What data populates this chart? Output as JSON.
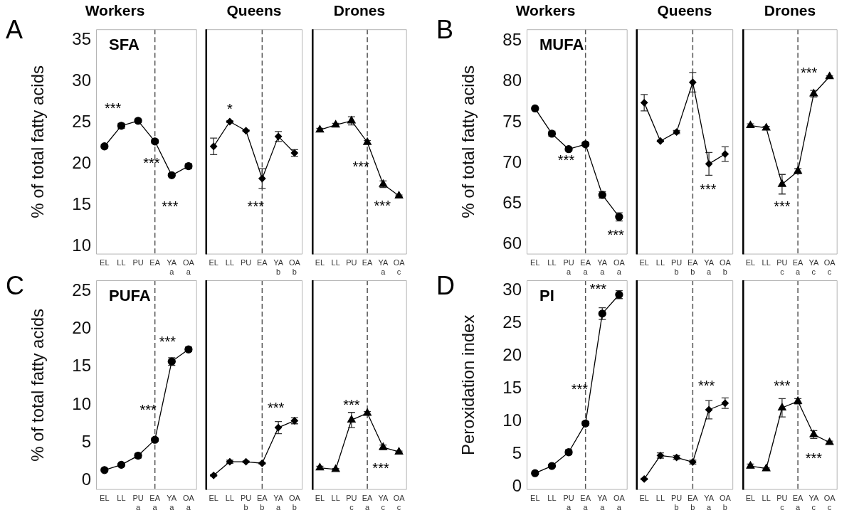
{
  "chart_data": [
    {
      "type": "line",
      "title": "Workers",
      "ylabel": "% of total fatty acids",
      "categories": [
        "EL",
        "LL",
        "PU",
        "EA",
        "YA\na",
        "OA\na"
      ],
      "series": [
        {
          "color": "#000000",
          "values": [
            22.1,
            24.6,
            25.2,
            22.7,
            18.6,
            19.7
          ],
          "errors": [
            0.2,
            0.3,
            0.2,
            0.2,
            0.2,
            0.3
          ]
        }
      ],
      "ylim": [
        9,
        36.3
      ],
      "yticks": [
        10,
        15,
        20,
        25,
        30,
        35
      ],
      "marker": "circle",
      "ref_lines": [
        {
          "axis": "x",
          "value": "EA"
        }
      ],
      "annotations": [
        "A",
        "SFA",
        "***",
        "***",
        "***"
      ]
    },
    {
      "type": "line",
      "title": "Queens",
      "categories": [
        "EL",
        "LL",
        "PU",
        "EA",
        "YA\nb",
        "OA\nb"
      ],
      "series": [
        {
          "color": "#000000",
          "values": [
            22.1,
            25.1,
            24.0,
            18.2,
            23.3,
            21.3
          ],
          "errors": [
            1.0,
            0.1,
            0.1,
            1.2,
            0.6,
            0.4
          ]
        }
      ],
      "ylim": [
        9,
        36.3
      ],
      "yticks": [
        10,
        15,
        20,
        25,
        30,
        35
      ],
      "tick_labels": "x",
      "marker": "diamond",
      "ref_lines": [
        {
          "axis": "x",
          "value": "EA"
        }
      ],
      "annotations": [
        "*",
        "***"
      ]
    },
    {
      "type": "line",
      "title": "Drones",
      "categories": [
        "EL",
        "LL",
        "PU",
        "EA",
        "YA\na",
        "OA\nc"
      ],
      "series": [
        {
          "color": "#000000",
          "values": [
            24.1,
            24.7,
            25.2,
            22.6,
            17.5,
            16.1
          ],
          "errors": [
            0.2,
            0.2,
            0.5,
            0.2,
            0.4,
            0.1
          ]
        }
      ],
      "ylim": [
        9,
        36.3
      ],
      "yticks": [
        10,
        15,
        20,
        25,
        30,
        35
      ],
      "tick_labels": "x",
      "marker": "triangle",
      "ref_lines": [
        {
          "axis": "x",
          "value": "EA"
        }
      ],
      "annotations": [
        "***",
        "***"
      ]
    },
    {
      "type": "line",
      "title": "Workers",
      "ylabel": "% of total fatty acids",
      "categories": [
        "EL",
        "LL",
        "PU\na",
        "EA\na",
        "YA\na",
        "OA\na"
      ],
      "series": [
        {
          "color": "#000000",
          "values": [
            76.7,
            73.6,
            71.7,
            72.3,
            66.1,
            63.4
          ],
          "errors": [
            0.1,
            0.3,
            0.2,
            0.2,
            0.4,
            0.5
          ]
        }
      ],
      "ylim": [
        58.8,
        86.4
      ],
      "yticks": [
        60,
        65,
        70,
        75,
        80,
        85
      ],
      "marker": "circle",
      "ref_lines": [
        {
          "axis": "x",
          "value": "EA\na"
        }
      ],
      "annotations": [
        "B",
        "MUFA",
        "***",
        "***"
      ]
    },
    {
      "type": "line",
      "title": "Queens",
      "categories": [
        "EL",
        "LL",
        "PU\nb",
        "EA\nb",
        "YA\na",
        "OA\nb"
      ],
      "series": [
        {
          "color": "#000000",
          "values": [
            77.4,
            72.7,
            73.8,
            79.9,
            69.9,
            71.1
          ],
          "errors": [
            1.0,
            0.1,
            0.2,
            1.2,
            1.4,
            0.9
          ]
        }
      ],
      "ylim": [
        58.8,
        86.4
      ],
      "yticks": [
        60,
        65,
        70,
        75,
        80,
        85
      ],
      "tick_labels": "x",
      "marker": "diamond",
      "ref_lines": [
        {
          "axis": "x",
          "value": "EA\nb"
        }
      ],
      "annotations": [
        "***"
      ]
    },
    {
      "type": "line",
      "title": "Drones",
      "categories": [
        "EL",
        "LL",
        "PU\nc",
        "EA\na",
        "YA\nc",
        "OA\nc"
      ],
      "series": [
        {
          "color": "#000000",
          "values": [
            74.6,
            74.3,
            67.4,
            69.0,
            78.5,
            80.6
          ],
          "errors": [
            0.2,
            0.2,
            1.2,
            0.3,
            0.4,
            0.1
          ]
        }
      ],
      "ylim": [
        58.8,
        86.4
      ],
      "yticks": [
        60,
        65,
        70,
        75,
        80,
        85
      ],
      "tick_labels": "x",
      "marker": "triangle",
      "ref_lines": [
        {
          "axis": "x",
          "value": "EA\na"
        }
      ],
      "annotations": [
        "***",
        "***"
      ]
    },
    {
      "type": "line",
      "ylabel": "% of total fatty acids",
      "categories": [
        "EL",
        "LL",
        "PU\na",
        "EA\na",
        "YA\na",
        "OA\na"
      ],
      "series": [
        {
          "color": "#000000",
          "values": [
            1.4,
            2.1,
            3.3,
            5.4,
            15.7,
            17.3
          ],
          "errors": [
            0.1,
            0.1,
            0.3,
            0.2,
            0.5,
            0.3
          ]
        }
      ],
      "ylim": [
        -1.2,
        26.4
      ],
      "yticks": [
        0,
        5,
        10,
        15,
        20,
        25
      ],
      "marker": "circle",
      "ref_lines": [
        {
          "axis": "x",
          "value": "EA\na"
        }
      ],
      "annotations": [
        "C",
        "PUFA",
        "***",
        "***"
      ]
    },
    {
      "type": "line",
      "categories": [
        "EL",
        "LL",
        "PU\nb",
        "EA\nb",
        "YA\na",
        "OA\nb"
      ],
      "series": [
        {
          "color": "#000000",
          "values": [
            0.7,
            2.5,
            2.5,
            2.3,
            7.0,
            7.9
          ],
          "errors": [
            0.1,
            0.2,
            0.1,
            0.1,
            0.8,
            0.4
          ]
        }
      ],
      "ylim": [
        -1.2,
        26.4
      ],
      "yticks": [
        0,
        5,
        10,
        15,
        20,
        25
      ],
      "tick_labels": "x",
      "marker": "diamond",
      "ref_lines": [
        {
          "axis": "x",
          "value": "EA\nb"
        }
      ],
      "annotations": [
        "***"
      ]
    },
    {
      "type": "line",
      "categories": [
        "EL",
        "LL",
        "PU\nc",
        "EA\na",
        "YA\nc",
        "OA\nc"
      ],
      "series": [
        {
          "color": "#000000",
          "values": [
            1.7,
            1.5,
            8.0,
            8.9,
            4.4,
            3.8
          ],
          "errors": [
            0.2,
            0.1,
            1.0,
            0.2,
            0.3,
            0.1
          ]
        }
      ],
      "ylim": [
        -1.2,
        26.4
      ],
      "yticks": [
        0,
        5,
        10,
        15,
        20,
        25
      ],
      "tick_labels": "x",
      "marker": "triangle",
      "ref_lines": [
        {
          "axis": "x",
          "value": "EA\na"
        }
      ],
      "annotations": [
        "***",
        "***"
      ]
    },
    {
      "type": "line",
      "ylabel": "Peroxidation index",
      "categories": [
        "EL",
        "LL",
        "PU\na",
        "EA\na",
        "YA\na",
        "OA\na"
      ],
      "series": [
        {
          "color": "#000000",
          "values": [
            2.1,
            3.2,
            5.3,
            9.7,
            26.5,
            29.4
          ],
          "errors": [
            0.2,
            0.2,
            0.4,
            0.3,
            0.9,
            0.6
          ]
        }
      ],
      "ylim": [
        -0.45,
        31.6
      ],
      "yticks": [
        0,
        5,
        10,
        15,
        20,
        25,
        30
      ],
      "marker": "circle",
      "ref_lines": [
        {
          "axis": "x",
          "value": "EA\na"
        }
      ],
      "annotations": [
        "D",
        "PI",
        "***",
        "***"
      ]
    },
    {
      "type": "line",
      "categories": [
        "EL",
        "LL",
        "PU\nb",
        "EA\nb",
        "YA\na",
        "OA\nb"
      ],
      "series": [
        {
          "color": "#000000",
          "values": [
            1.2,
            4.8,
            4.5,
            3.8,
            11.8,
            12.8
          ],
          "errors": [
            0.1,
            0.4,
            0.3,
            0.3,
            1.4,
            0.8
          ]
        }
      ],
      "ylim": [
        -0.45,
        31.6
      ],
      "yticks": [
        0,
        5,
        10,
        15,
        20,
        25,
        30
      ],
      "tick_labels": "x",
      "marker": "diamond",
      "ref_lines": [
        {
          "axis": "x",
          "value": "EA\nb"
        }
      ],
      "annotations": [
        "***"
      ]
    },
    {
      "type": "line",
      "categories": [
        "EL",
        "LL",
        "PU\nc",
        "EA\na",
        "YA\nc",
        "OA\nc"
      ],
      "series": [
        {
          "color": "#000000",
          "values": [
            3.2,
            2.8,
            12.1,
            13.1,
            8.0,
            6.8
          ],
          "errors": [
            0.3,
            0.1,
            1.4,
            0.4,
            0.6,
            0.2
          ]
        }
      ],
      "ylim": [
        -0.45,
        31.6
      ],
      "yticks": [
        0,
        5,
        10,
        15,
        20,
        25,
        30
      ],
      "tick_labels": "x",
      "marker": "triangle",
      "ref_lines": [
        {
          "axis": "x",
          "value": "EA\na"
        }
      ],
      "annotations": [
        "***",
        "***"
      ]
    }
  ]
}
